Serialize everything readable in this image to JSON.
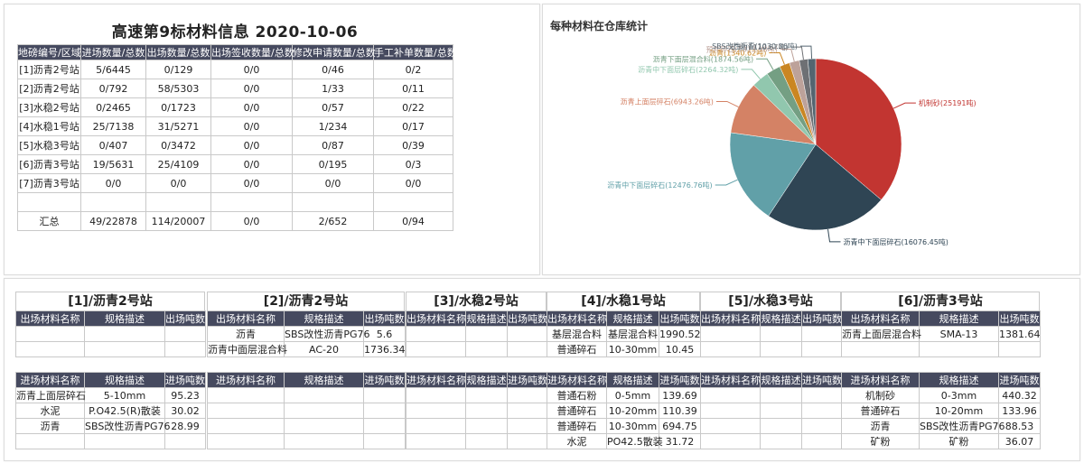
{
  "summary": {
    "title": "高速第9标材料信息 2020-10-06",
    "headers": [
      "地磅编号/区域",
      "进场数量/总数",
      "出场数量/总数",
      "出场签收数量/总数",
      "修改申请数量/总数",
      "手工补单数量/总数"
    ],
    "rows": [
      [
        "[1]沥青2号站",
        "5/6445",
        "0/129",
        "0/0",
        "0/46",
        "0/2"
      ],
      [
        "[2]沥青2号站",
        "0/792",
        "58/5303",
        "0/0",
        "1/33",
        "0/11"
      ],
      [
        "[3]水稳2号站",
        "0/2465",
        "0/1723",
        "0/0",
        "0/57",
        "0/22"
      ],
      [
        "[4]水稳1号站",
        "25/7138",
        "31/5271",
        "0/0",
        "1/234",
        "0/17"
      ],
      [
        "[5]水稳3号站",
        "0/407",
        "0/3472",
        "0/0",
        "0/87",
        "0/39"
      ],
      [
        "[6]沥青3号站",
        "19/5631",
        "25/4109",
        "0/0",
        "0/195",
        "0/3"
      ],
      [
        "[7]沥青3号站",
        "0/0",
        "0/0",
        "0/0",
        "0/0",
        "0/0"
      ],
      [
        "",
        "",
        "",
        "",
        "",
        ""
      ],
      [
        "汇总",
        "49/22878",
        "114/20007",
        "0/0",
        "2/652",
        "0/94"
      ]
    ]
  },
  "chart_data": {
    "type": "pie",
    "title": "每种材料在仓库统计",
    "unit": "吨",
    "series": [
      {
        "name": "机制砂",
        "value": 25191,
        "label": "机制砂(25191吨)",
        "color": "#c23531"
      },
      {
        "name": "沥青中下面层碎石",
        "value": 16076.45,
        "label": "沥青中下面层碎石(16076.45吨)",
        "color": "#2f4554"
      },
      {
        "name": "沥青中下面层碎石",
        "value": 12476.76,
        "label": "沥青中下面层碎石(12476.76吨)",
        "color": "#61a0a8"
      },
      {
        "name": "沥青上面层碎石",
        "value": 6943.26,
        "label": "沥青上面层碎石(6943.26吨)",
        "color": "#d48265"
      },
      {
        "name": "沥青中下面层碎石",
        "value": 2264.32,
        "label": "沥青中下面层碎石(2264.32吨)",
        "color": "#91c7ae"
      },
      {
        "name": "沥青下面层混合料",
        "value": 1874.56,
        "label": "沥青下面层混合料(1874.56吨)",
        "color": "#749f83"
      },
      {
        "name": "沥青",
        "value": 1340.62,
        "label": "沥青(1340.62吨)",
        "color": "#ca8622"
      },
      {
        "name": "预拌碎石",
        "value": 1313.98,
        "label": "预拌碎石(1313.98吨)",
        "color": "#bda29a"
      },
      {
        "name": "矿粉",
        "value": 1110.67,
        "label": "矿粉(1110.67吨)",
        "color": "#6e7074"
      },
      {
        "name": "SBS改性沥青",
        "value": 1030.36,
        "label": "SBS改性沥青(1030.36吨)",
        "color": "#546570"
      }
    ]
  },
  "stations": [
    {
      "title": "[1]/沥青2号站",
      "out_headers": [
        "出场材料名称",
        "规格描述",
        "出场吨数"
      ],
      "out_rows": [
        [
          "",
          "",
          ""
        ],
        [
          "",
          "",
          ""
        ]
      ],
      "in_headers": [
        "进场材料名称",
        "规格描述",
        "进场吨数"
      ],
      "in_rows": [
        [
          "沥青上面层碎石",
          "5-10mm",
          "95.23"
        ],
        [
          "水泥",
          "P.O42.5(R)散装",
          "30.02"
        ],
        [
          "沥青",
          "SBS改性沥青PG76",
          "28.99"
        ],
        [
          "",
          "",
          ""
        ]
      ]
    },
    {
      "title": "[2]/沥青2号站",
      "out_headers": [
        "出场材料名称",
        "规格描述",
        "出场吨数"
      ],
      "out_rows": [
        [
          "沥青",
          "SBS改性沥青PG76",
          "5.6"
        ],
        [
          "沥青中面层混合料",
          "AC-20",
          "1736.34"
        ]
      ],
      "in_headers": [
        "进场材料名称",
        "规格描述",
        "进场吨数"
      ],
      "in_rows": [
        [
          "",
          "",
          ""
        ],
        [
          "",
          "",
          ""
        ],
        [
          "",
          "",
          ""
        ],
        [
          "",
          "",
          ""
        ]
      ]
    },
    {
      "title": "[3]/水稳2号站",
      "out_headers": [
        "出场材料名称",
        "规格描述",
        "出场吨数"
      ],
      "out_rows": [
        [
          "",
          "",
          ""
        ],
        [
          "",
          "",
          ""
        ]
      ],
      "in_headers": [
        "进场材料名称",
        "规格描述",
        "进场吨数"
      ],
      "in_rows": [
        [
          "",
          "",
          ""
        ],
        [
          "",
          "",
          ""
        ],
        [
          "",
          "",
          ""
        ],
        [
          "",
          "",
          ""
        ]
      ]
    },
    {
      "title": "[4]/水稳1号站",
      "out_headers": [
        "出场材料名称",
        "规格描述",
        "出场吨数"
      ],
      "out_rows": [
        [
          "基层混合料",
          "基层混合料",
          "1990.52"
        ],
        [
          "普通碎石",
          "10-30mm",
          "10.45"
        ]
      ],
      "in_headers": [
        "进场材料名称",
        "规格描述",
        "进场吨数"
      ],
      "in_rows": [
        [
          "普通石粉",
          "0-5mm",
          "139.69"
        ],
        [
          "普通碎石",
          "10-20mm",
          "110.39"
        ],
        [
          "普通碎石",
          "10-30mm",
          "694.75"
        ],
        [
          "水泥",
          "PO42.5散装",
          "31.72"
        ]
      ]
    },
    {
      "title": "[5]/水稳3号站",
      "out_headers": [
        "出场材料名称",
        "规格描述",
        "出场吨数"
      ],
      "out_rows": [
        [
          "",
          "",
          ""
        ],
        [
          "",
          "",
          ""
        ]
      ],
      "in_headers": [
        "进场材料名称",
        "规格描述",
        "进场吨数"
      ],
      "in_rows": [
        [
          "",
          "",
          ""
        ],
        [
          "",
          "",
          ""
        ],
        [
          "",
          "",
          ""
        ],
        [
          "",
          "",
          ""
        ]
      ]
    },
    {
      "title": "[6]/沥青3号站",
      "out_headers": [
        "出场材料名称",
        "规格描述",
        "出场吨数"
      ],
      "out_rows": [
        [
          "沥青上面层混合料",
          "SMA-13",
          "1381.64"
        ],
        [
          "",
          "",
          ""
        ]
      ],
      "in_headers": [
        "进场材料名称",
        "规格描述",
        "进场吨数"
      ],
      "in_rows": [
        [
          "机制砂",
          "0-3mm",
          "440.32"
        ],
        [
          "普通碎石",
          "10-20mm",
          "133.96"
        ],
        [
          "沥青",
          "SBS改性沥青PG76",
          "88.53"
        ],
        [
          "矿粉",
          "矿粉",
          "36.07"
        ]
      ]
    }
  ]
}
